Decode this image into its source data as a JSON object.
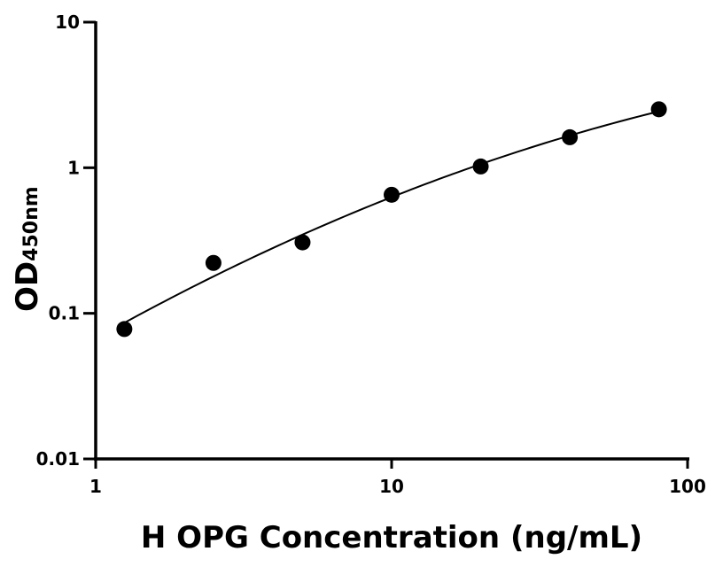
{
  "chart_data": {
    "type": "scatter",
    "xlabel": "H OPG Concentration (ng/mL)",
    "ylabel_main": "OD",
    "ylabel_sub": "450nm",
    "x_scale": "log",
    "y_scale": "log",
    "xlim": [
      1,
      100
    ],
    "ylim": [
      0.01,
      10
    ],
    "x_ticks": [
      1,
      10,
      100
    ],
    "x_tick_labels": [
      "1",
      "10",
      "100"
    ],
    "y_ticks": [
      0.01,
      0.1,
      1,
      10
    ],
    "y_tick_labels": [
      "0.01",
      "0.1",
      "1",
      "10"
    ],
    "grid": false,
    "series": [
      {
        "x": [
          1.25,
          2.5,
          5,
          10,
          20,
          40,
          80
        ],
        "y": [
          0.078,
          0.222,
          0.307,
          0.652,
          1.02,
          1.62,
          2.52
        ],
        "color": "#000000",
        "marker": "circle",
        "fit_curve": true
      }
    ]
  }
}
